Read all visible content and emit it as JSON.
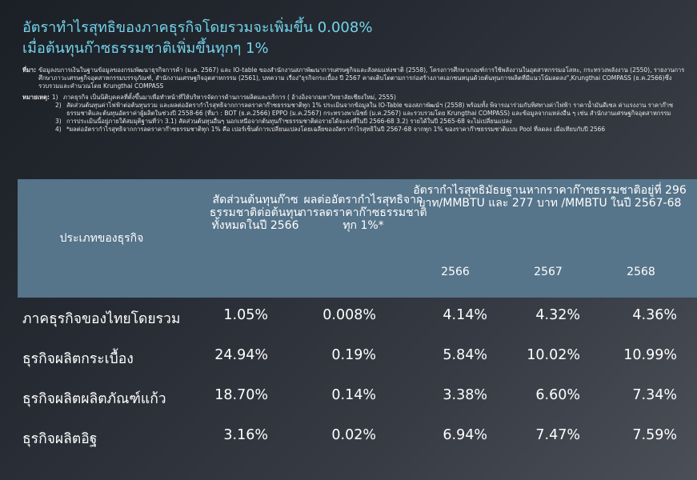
{
  "title": {
    "line1": "อัตราทำไรสุทธิของภาคธุรกิจโดยรวมจะเพิ่มขึ้น 0.008%",
    "line2": "เมื่อต้นทุนก๊าซธรรมชาติเพิ่มขึ้นทุกๆ 1%"
  },
  "notes": {
    "source_label": "ที่มา:",
    "source_text": "ข้อมูลงบการเงินในฐานข้อมูลของกรมพัฒนาธุรกิจการค้า (ม.ค. 2567) และ IO-table ของสำนักงานสภาพัฒนาการเศรษฐกิจและสังคมแห่งชาติ (2558), โครงการศึกษาเกณฑ์การใช้พลังงานในอุตสาหกรรมอโลหะ, กระทรวงพลังงาน (2550), รายงานการศึกษาภาวะเศรษฐกิจอุตสาหกรรมบรรจุภัณฑ์, สำนักงานเศรษฐกิจอุตสาหกรรม (2561), บทความ เรื่อง\"ธุรกิจกระเบื้อง ปี 2567 คาดเติบโตตามการก่อสร้างภาคเอกชนหนุนด้วยต้นทุนการผลิตที่มีแนวโน้มลดลง\",Krungthai COMPASS (ธ.ค.2566)ซึ่งรวบรวมและคำนวณโดย Krungthai COMPASS",
    "remark_label": "หมายเหตุ:",
    "items": [
      {
        "num": "1)",
        "text": "ภาคธุรกิจ เป็นนิติบุคคลที่ตั้งขึ้นมาเพื่อทำหน้าที่ให้บริหารจัดการด้านการผลิตและบริการ ( อ้างอิงจากมหาวิทยาลัยเชียงใหม่, 2555)"
      },
      {
        "num": "2)",
        "text": "สัดส่วนต้นทุนค่าไฟฟ้าต่อต้นทุนรวม และผลต่ออัตรากำไรสุทธิจากการลดราคาก๊าซธรรมชาติทุก 1% ประเมินจากข้อมูลใน IO-Table ของสภาพัฒน์ฯ (2558) พร้อมทั้ง พิจารณาร่วมกับทิศทางค่าไฟฟ้า ราคาน้ำมันดีเซล ค่าแรงงาน ราคาก๊าซธรรมชาติและต้นทุนอัตราค่าผู้ผลิตในช่วงปี 2558-66 (ที่มา : BOT (ธ.ค.2566) EPPO (ม.ค.2567) กระทรวงพาณิชย์ (ม.ค.2567) และรวบรวมโดย Krungthai COMPASS) และข้อมูลจากแหล่งอื่น ๆ เช่น สำนักงานเศรษฐกิจอุตสาหกรรม"
      },
      {
        "num": "3)",
        "text": "การประเมินนี้อยู่ภายใต้สมมุติฐานที่ว่า 3.1) สัดส่วนต้นทุนอื่นๆ นอกเหนือจากต้นทุนก๊าซธรรมชาติต่อรายได้จะคงที่ในปี 2566-68 3.2) รายได้ในปี 2565-68 จะไม่เปลี่ยนแปลง"
      },
      {
        "num": "4)",
        "text": "*ผลต่ออัตรากำไรสุทธิจากการลดราคาก๊าซธรรมชาติทุก 1% คือ เปอร์เซ็นต์การเปลี่ยนแปลงโดยเฉลี่ยของอัตรากำไรสุทธิในปี 2567-68 จากทุก 1% ของราคาก๊าซธรรมชาติแบบ Pool ที่ลดลง เมื่อเทียบกับปี 2566"
      }
    ]
  },
  "table": {
    "header": {
      "type": "ประเภทของธุรกิจ",
      "share": "สัดส่วนต้นทุนก๊าซธรรมชาติต่อต้นทุนทั้งหมดในปี 2566",
      "effect": "ผลต่ออัตรากำไรสุทธิจากการลดราคาก๊าซธรรมชาติทุก 1%*",
      "returns": "อัตรากำไรสุทธิมัธยฐานหากราคาก๊าซธรรมชาติอยู่ที่ 296 บาท/MMBTU และ 277 บาท /MMBTU ในปี 2567-68",
      "years": [
        "2566",
        "2567",
        "2568"
      ]
    },
    "rows": [
      {
        "name": "ภาคธุรกิจของไทยโดยรวม",
        "share": "1.05%",
        "effect": "0.008%",
        "y2566": "4.14%",
        "y2567": "4.32%",
        "y2568": "4.36%"
      },
      {
        "name": "ธุรกิจผลิตกระเบื้อง",
        "share": "24.94%",
        "effect": "0.19%",
        "y2566": "5.84%",
        "y2567": "10.02%",
        "y2568": "10.99%"
      },
      {
        "name": "ธุรกิจผลิตผลิตภัณฑ์แก้ว",
        "share": "18.70%",
        "effect": "0.14%",
        "y2566": "3.38%",
        "y2567": "6.60%",
        "y2568": "7.34%"
      },
      {
        "name": "ธุรกิจผลิตอิฐ",
        "share": "3.16%",
        "effect": "0.02%",
        "y2566": "6.94%",
        "y2567": "7.47%",
        "y2568": "7.59%"
      }
    ]
  }
}
